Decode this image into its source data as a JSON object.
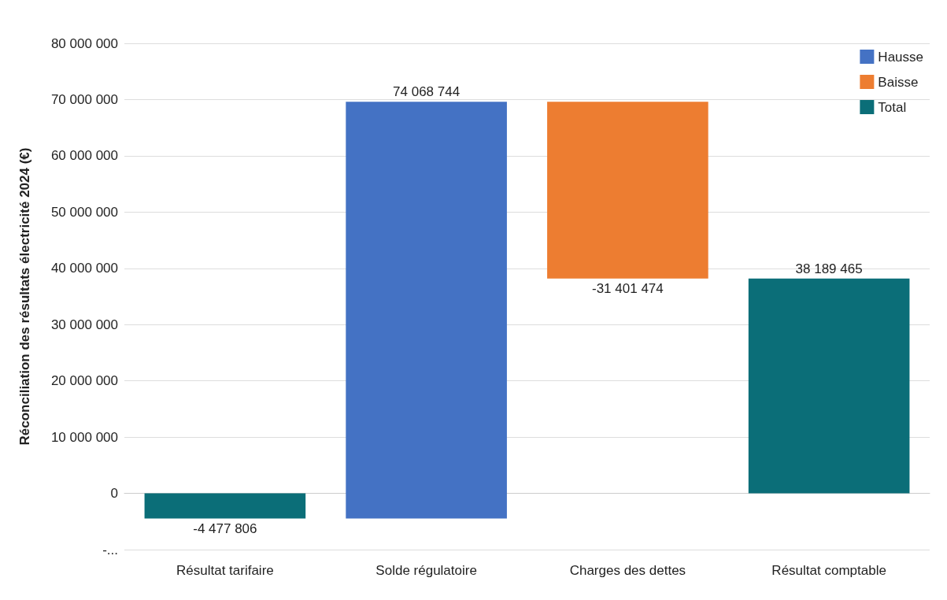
{
  "chart_data": {
    "type": "bar",
    "ylabel": "Réconciliation des résultats électricité 2024 (€)",
    "categories": [
      "Résultat tarifaire",
      "Solde régulatoire",
      "Charges des dettes",
      "Résultat comptable"
    ],
    "series": [
      {
        "name": "Hausse",
        "color": "#4472c4",
        "values": [
          null,
          74068744,
          null,
          null
        ],
        "base": [
          null,
          -4477806,
          null,
          null
        ]
      },
      {
        "name": "Baisse",
        "color": "#ed7d31",
        "values": [
          null,
          null,
          -31401474,
          null
        ],
        "base": [
          null,
          null,
          69590938,
          null
        ]
      },
      {
        "name": "Total",
        "color": "#0b6e78",
        "values": [
          -4477806,
          null,
          null,
          38189465
        ],
        "base": [
          0,
          null,
          null,
          0
        ]
      }
    ],
    "value_labels": [
      "-4 477 806",
      "74 068 744",
      "-31 401 474",
      "38 189 465"
    ],
    "ylim": [
      -10000000,
      80000000
    ],
    "yticks": [
      {
        "value": -10000000,
        "label": "-..."
      },
      {
        "value": 0,
        "label": "0"
      },
      {
        "value": 10000000,
        "label": "10 000 000"
      },
      {
        "value": 20000000,
        "label": "20 000 000"
      },
      {
        "value": 30000000,
        "label": "30 000 000"
      },
      {
        "value": 40000000,
        "label": "40 000 000"
      },
      {
        "value": 50000000,
        "label": "50 000 000"
      },
      {
        "value": 60000000,
        "label": "60 000 000"
      },
      {
        "value": 70000000,
        "label": "70 000 000"
      },
      {
        "value": 80000000,
        "label": "80 000 000"
      }
    ],
    "grid": "y",
    "legend": "top right"
  }
}
